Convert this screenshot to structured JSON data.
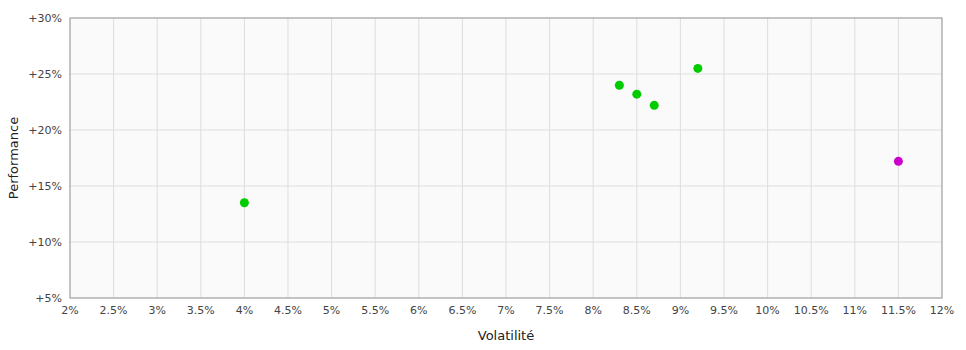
{
  "chart_data": {
    "type": "scatter",
    "xlabel": "Volatilité",
    "ylabel": "Performance",
    "xlim": [
      0.02,
      0.12
    ],
    "ylim": [
      0.05,
      0.3
    ],
    "xticks": [
      {
        "value": 0.02,
        "label": "2%"
      },
      {
        "value": 0.025,
        "label": "2.5%"
      },
      {
        "value": 0.03,
        "label": "3%"
      },
      {
        "value": 0.035,
        "label": "3.5%"
      },
      {
        "value": 0.04,
        "label": "4%"
      },
      {
        "value": 0.045,
        "label": "4.5%"
      },
      {
        "value": 0.05,
        "label": "5%"
      },
      {
        "value": 0.055,
        "label": "5.5%"
      },
      {
        "value": 0.06,
        "label": "6%"
      },
      {
        "value": 0.065,
        "label": "6.5%"
      },
      {
        "value": 0.07,
        "label": "7%"
      },
      {
        "value": 0.075,
        "label": "7.5%"
      },
      {
        "value": 0.08,
        "label": "8%"
      },
      {
        "value": 0.085,
        "label": "8.5%"
      },
      {
        "value": 0.09,
        "label": "9%"
      },
      {
        "value": 0.095,
        "label": "9.5%"
      },
      {
        "value": 0.1,
        "label": "10%"
      },
      {
        "value": 0.105,
        "label": "10.5%"
      },
      {
        "value": 0.11,
        "label": "11%"
      },
      {
        "value": 0.115,
        "label": "11.5%"
      },
      {
        "value": 0.12,
        "label": "12%"
      }
    ],
    "yticks": [
      {
        "value": 0.05,
        "label": "+5%"
      },
      {
        "value": 0.1,
        "label": "+10%"
      },
      {
        "value": 0.15,
        "label": "+15%"
      },
      {
        "value": 0.2,
        "label": "+20%"
      },
      {
        "value": 0.25,
        "label": "+25%"
      },
      {
        "value": 0.3,
        "label": "+30%"
      }
    ],
    "grid": true,
    "series": [
      {
        "color": "#00cc00",
        "x": [
          0.04,
          0.083,
          0.085,
          0.087,
          0.092
        ],
        "values": [
          0.135,
          0.24,
          0.232,
          0.222,
          0.255
        ]
      },
      {
        "color": "#cc00cc",
        "x": [
          0.115
        ],
        "values": [
          0.172
        ]
      }
    ]
  }
}
